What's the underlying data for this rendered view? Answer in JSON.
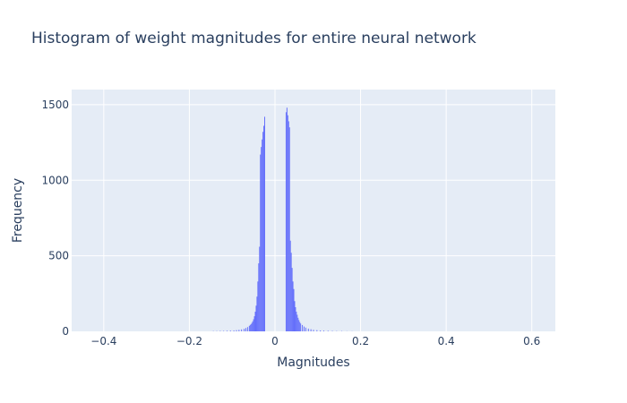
{
  "chart_data": {
    "type": "bar",
    "title": "Histogram of weight magnitudes for entire neural network",
    "xlabel": "Magnitudes",
    "ylabel": "Frequency",
    "xlim": [
      -0.475,
      0.655
    ],
    "ylim": [
      0,
      1600
    ],
    "xticks": [
      -0.4,
      -0.2,
      0,
      0.2,
      0.4,
      0.6
    ],
    "xtick_labels": [
      "−0.4",
      "−0.2",
      "0",
      "0.2",
      "0.4",
      "0.6"
    ],
    "yticks": [
      0,
      500,
      1000,
      1500
    ],
    "ytick_labels": [
      "0",
      "500",
      "1000",
      "1500"
    ],
    "bin_width": 0.002,
    "grid": true,
    "bar_color": "#636efa",
    "plot_bg": "#e5ecf6",
    "bins": [
      [
        -0.144,
        2
      ],
      [
        -0.136,
        2
      ],
      [
        -0.128,
        3
      ],
      [
        -0.12,
        3
      ],
      [
        -0.112,
        4
      ],
      [
        -0.104,
        5
      ],
      [
        -0.096,
        6
      ],
      [
        -0.09,
        8
      ],
      [
        -0.084,
        10
      ],
      [
        -0.078,
        13
      ],
      [
        -0.072,
        17
      ],
      [
        -0.068,
        22
      ],
      [
        -0.064,
        28
      ],
      [
        -0.06,
        36
      ],
      [
        -0.058,
        42
      ],
      [
        -0.056,
        48
      ],
      [
        -0.054,
        56
      ],
      [
        -0.052,
        66
      ],
      [
        -0.05,
        80
      ],
      [
        -0.048,
        100
      ],
      [
        -0.046,
        130
      ],
      [
        -0.044,
        170
      ],
      [
        -0.042,
        230
      ],
      [
        -0.04,
        330
      ],
      [
        -0.038,
        450
      ],
      [
        -0.036,
        560
      ],
      [
        -0.034,
        1170
      ],
      [
        -0.032,
        1220
      ],
      [
        -0.03,
        1270
      ],
      [
        -0.028,
        1320
      ],
      [
        -0.026,
        1360
      ],
      [
        -0.024,
        1420
      ],
      [
        0.026,
        1450
      ],
      [
        0.028,
        1480
      ],
      [
        0.03,
        1430
      ],
      [
        0.032,
        1390
      ],
      [
        0.034,
        1350
      ],
      [
        0.036,
        600
      ],
      [
        0.038,
        520
      ],
      [
        0.04,
        420
      ],
      [
        0.042,
        330
      ],
      [
        0.044,
        280
      ],
      [
        0.046,
        200
      ],
      [
        0.048,
        160
      ],
      [
        0.05,
        130
      ],
      [
        0.052,
        110
      ],
      [
        0.054,
        90
      ],
      [
        0.056,
        75
      ],
      [
        0.058,
        62
      ],
      [
        0.06,
        52
      ],
      [
        0.064,
        42
      ],
      [
        0.068,
        32
      ],
      [
        0.072,
        25
      ],
      [
        0.078,
        18
      ],
      [
        0.084,
        14
      ],
      [
        0.09,
        10
      ],
      [
        0.098,
        8
      ],
      [
        0.106,
        6
      ],
      [
        0.114,
        5
      ],
      [
        0.124,
        4
      ],
      [
        0.134,
        3
      ],
      [
        0.144,
        2
      ],
      [
        0.156,
        2
      ],
      [
        0.168,
        1
      ],
      [
        0.18,
        1
      ]
    ]
  }
}
